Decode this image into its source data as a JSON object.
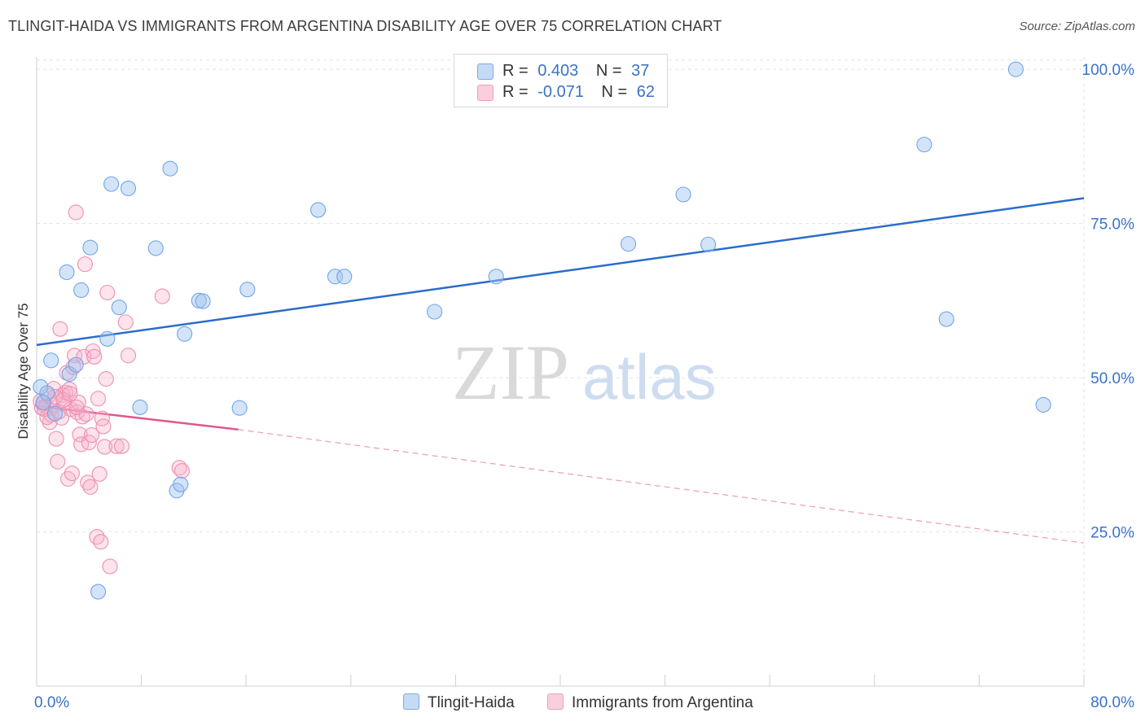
{
  "title": "TLINGIT-HAIDA VS IMMIGRANTS FROM ARGENTINA DISABILITY AGE OVER 75 CORRELATION CHART",
  "source": "Source: ZipAtlas.com",
  "watermark": {
    "zip": "ZIP",
    "atlas": "atlas"
  },
  "legend": {
    "r_label": "R =",
    "n_label": "N =",
    "rows": [
      {
        "r": "0.403",
        "n": "37"
      },
      {
        "r": "-0.071",
        "n": "62"
      }
    ]
  },
  "chart_data": {
    "type": "scatter",
    "title": "TLINGIT-HAIDA VS IMMIGRANTS FROM ARGENTINA DISABILITY AGE OVER 75 CORRELATION CHART",
    "xlabel": "",
    "ylabel": "Disability Age Over 75",
    "xlim": [
      0,
      80
    ],
    "ylim": [
      0,
      102
    ],
    "x_tick_labels": [
      "0.0%",
      "80.0%"
    ],
    "y_ticks": [
      25,
      50,
      75,
      100
    ],
    "y_tick_labels": [
      "25.0%",
      "50.0%",
      "75.0%",
      "100.0%"
    ],
    "grid": true,
    "legend_position": "top-center",
    "series": [
      {
        "name": "Tlingit-Haida",
        "color": "#6fa6e8",
        "line_color": "#2b6ccb",
        "r": 0.403,
        "n": 37,
        "trend": {
          "x": [
            0,
            80
          ],
          "y": [
            55.3,
            79.1
          ]
        },
        "points": [
          {
            "x": 0.3,
            "y": 48.5
          },
          {
            "x": 0.8,
            "y": 47.5
          },
          {
            "x": 1.1,
            "y": 52.8
          },
          {
            "x": 1.4,
            "y": 44.2
          },
          {
            "x": 2.3,
            "y": 67.1
          },
          {
            "x": 2.5,
            "y": 50.6
          },
          {
            "x": 3.0,
            "y": 52.1
          },
          {
            "x": 3.4,
            "y": 64.2
          },
          {
            "x": 4.1,
            "y": 71.1
          },
          {
            "x": 4.7,
            "y": 15.3
          },
          {
            "x": 5.4,
            "y": 56.3
          },
          {
            "x": 5.7,
            "y": 81.4
          },
          {
            "x": 6.3,
            "y": 61.4
          },
          {
            "x": 7.0,
            "y": 80.7
          },
          {
            "x": 7.9,
            "y": 45.2
          },
          {
            "x": 9.1,
            "y": 71.0
          },
          {
            "x": 10.2,
            "y": 83.9
          },
          {
            "x": 10.7,
            "y": 31.7
          },
          {
            "x": 11.0,
            "y": 32.7
          },
          {
            "x": 11.3,
            "y": 57.1
          },
          {
            "x": 12.4,
            "y": 62.5
          },
          {
            "x": 12.7,
            "y": 62.4
          },
          {
            "x": 15.5,
            "y": 45.1
          },
          {
            "x": 16.1,
            "y": 64.3
          },
          {
            "x": 21.5,
            "y": 77.2
          },
          {
            "x": 22.8,
            "y": 66.4
          },
          {
            "x": 23.5,
            "y": 66.4
          },
          {
            "x": 30.4,
            "y": 60.7
          },
          {
            "x": 35.1,
            "y": 66.4
          },
          {
            "x": 45.2,
            "y": 71.7
          },
          {
            "x": 49.4,
            "y": 79.7
          },
          {
            "x": 51.3,
            "y": 71.6
          },
          {
            "x": 67.8,
            "y": 87.8
          },
          {
            "x": 69.5,
            "y": 59.5
          },
          {
            "x": 74.8,
            "y": 100.0
          },
          {
            "x": 76.9,
            "y": 45.6
          },
          {
            "x": 0.5,
            "y": 46.0
          }
        ]
      },
      {
        "name": "Immigrants from Argentina",
        "color": "#f29dbb",
        "line_color": "#e0578c",
        "r": -0.071,
        "n": 62,
        "trend": {
          "x": [
            0,
            15.4
          ],
          "y": [
            45.4,
            41.6
          ]
        },
        "trend_dashed": {
          "x": [
            15.4,
            80
          ],
          "y": [
            41.6,
            23.2
          ]
        },
        "points": [
          {
            "x": 0.3,
            "y": 46.2
          },
          {
            "x": 0.5,
            "y": 45.7
          },
          {
            "x": 0.7,
            "y": 45.4
          },
          {
            "x": 0.9,
            "y": 47.1
          },
          {
            "x": 1.0,
            "y": 42.8
          },
          {
            "x": 1.1,
            "y": 44.0
          },
          {
            "x": 1.2,
            "y": 45.6
          },
          {
            "x": 1.3,
            "y": 48.2
          },
          {
            "x": 1.5,
            "y": 40.1
          },
          {
            "x": 1.6,
            "y": 36.4
          },
          {
            "x": 1.8,
            "y": 57.9
          },
          {
            "x": 1.9,
            "y": 43.5
          },
          {
            "x": 2.0,
            "y": 47.2
          },
          {
            "x": 2.1,
            "y": 45.8
          },
          {
            "x": 2.2,
            "y": 47.6
          },
          {
            "x": 2.3,
            "y": 50.8
          },
          {
            "x": 2.4,
            "y": 33.6
          },
          {
            "x": 2.5,
            "y": 48.1
          },
          {
            "x": 2.6,
            "y": 44.9
          },
          {
            "x": 2.7,
            "y": 34.5
          },
          {
            "x": 2.8,
            "y": 51.7
          },
          {
            "x": 2.9,
            "y": 53.6
          },
          {
            "x": 3.0,
            "y": 76.8
          },
          {
            "x": 3.1,
            "y": 44.4
          },
          {
            "x": 3.2,
            "y": 46.0
          },
          {
            "x": 3.3,
            "y": 40.8
          },
          {
            "x": 3.4,
            "y": 39.2
          },
          {
            "x": 3.5,
            "y": 43.7
          },
          {
            "x": 3.6,
            "y": 53.4
          },
          {
            "x": 3.7,
            "y": 68.4
          },
          {
            "x": 3.8,
            "y": 44.1
          },
          {
            "x": 3.9,
            "y": 33.0
          },
          {
            "x": 4.0,
            "y": 39.5
          },
          {
            "x": 4.1,
            "y": 32.3
          },
          {
            "x": 4.2,
            "y": 40.7
          },
          {
            "x": 4.3,
            "y": 54.3
          },
          {
            "x": 4.4,
            "y": 53.4
          },
          {
            "x": 4.6,
            "y": 24.2
          },
          {
            "x": 4.7,
            "y": 46.6
          },
          {
            "x": 4.8,
            "y": 34.4
          },
          {
            "x": 4.9,
            "y": 23.4
          },
          {
            "x": 5.0,
            "y": 43.4
          },
          {
            "x": 5.1,
            "y": 42.1
          },
          {
            "x": 5.2,
            "y": 38.8
          },
          {
            "x": 5.3,
            "y": 49.8
          },
          {
            "x": 5.4,
            "y": 63.8
          },
          {
            "x": 5.6,
            "y": 19.4
          },
          {
            "x": 6.1,
            "y": 38.9
          },
          {
            "x": 6.5,
            "y": 38.9
          },
          {
            "x": 6.8,
            "y": 59.0
          },
          {
            "x": 7.0,
            "y": 53.6
          },
          {
            "x": 9.6,
            "y": 63.2
          },
          {
            "x": 10.9,
            "y": 35.4
          },
          {
            "x": 11.1,
            "y": 34.9
          },
          {
            "x": 0.6,
            "y": 44.9
          },
          {
            "x": 0.8,
            "y": 43.6
          },
          {
            "x": 1.4,
            "y": 46.9
          },
          {
            "x": 1.7,
            "y": 44.5
          },
          {
            "x": 2.05,
            "y": 46.4
          },
          {
            "x": 2.55,
            "y": 47.4
          },
          {
            "x": 3.05,
            "y": 45.2
          },
          {
            "x": 0.4,
            "y": 45.1
          }
        ]
      }
    ]
  }
}
